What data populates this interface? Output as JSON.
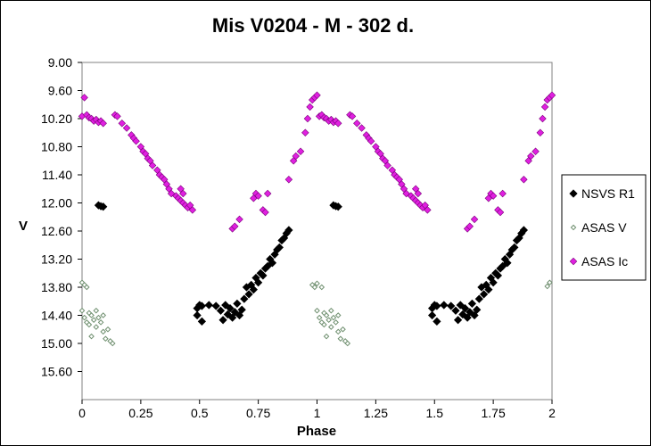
{
  "chart_data": {
    "type": "scatter",
    "title": "Mis V0204 - M - 302 d.",
    "xlabel": "Phase",
    "ylabel": "V",
    "xlim": [
      0,
      2
    ],
    "ylim": [
      9.0,
      16.2
    ],
    "y_inverted": true,
    "x_ticks": [
      "0",
      "0.25",
      "0.5",
      "0.75",
      "1",
      "1.25",
      "1.5",
      "1.75",
      "2"
    ],
    "y_ticks": [
      "9.00",
      "9.60",
      "10.20",
      "10.80",
      "11.40",
      "12.00",
      "12.60",
      "13.20",
      "13.80",
      "14.40",
      "15.00",
      "15.60"
    ],
    "grid": false,
    "legend_position": "right",
    "series": [
      {
        "name": "NSVS R1",
        "marker": "diamond-filled",
        "color": "#000000",
        "points": [
          [
            0.07,
            12.05
          ],
          [
            0.08,
            12.07
          ],
          [
            0.09,
            12.08
          ],
          [
            0.49,
            14.25
          ],
          [
            0.49,
            14.4
          ],
          [
            0.5,
            14.18
          ],
          [
            0.51,
            14.2
          ],
          [
            0.51,
            14.53
          ],
          [
            0.54,
            14.18
          ],
          [
            0.57,
            14.2
          ],
          [
            0.59,
            14.3
          ],
          [
            0.6,
            14.5
          ],
          [
            0.61,
            14.18
          ],
          [
            0.62,
            14.38
          ],
          [
            0.63,
            14.25
          ],
          [
            0.64,
            14.45
          ],
          [
            0.65,
            14.33
          ],
          [
            0.66,
            14.15
          ],
          [
            0.67,
            14.4
          ],
          [
            0.68,
            14.28
          ],
          [
            0.69,
            14.05
          ],
          [
            0.7,
            13.8
          ],
          [
            0.71,
            13.95
          ],
          [
            0.72,
            13.75
          ],
          [
            0.73,
            13.85
          ],
          [
            0.74,
            13.6
          ],
          [
            0.75,
            13.7
          ],
          [
            0.76,
            13.5
          ],
          [
            0.77,
            13.55
          ],
          [
            0.78,
            13.4
          ],
          [
            0.79,
            13.35
          ],
          [
            0.8,
            13.2
          ],
          [
            0.81,
            13.28
          ],
          [
            0.82,
            13.1
          ],
          [
            0.83,
            13.0
          ],
          [
            0.84,
            12.95
          ],
          [
            0.85,
            12.8
          ],
          [
            0.86,
            12.75
          ],
          [
            0.87,
            12.65
          ],
          [
            0.88,
            12.58
          ],
          [
            1.07,
            12.05
          ],
          [
            1.08,
            12.07
          ],
          [
            1.09,
            12.08
          ],
          [
            1.49,
            14.25
          ],
          [
            1.49,
            14.4
          ],
          [
            1.5,
            14.18
          ],
          [
            1.51,
            14.2
          ],
          [
            1.51,
            14.53
          ],
          [
            1.54,
            14.18
          ],
          [
            1.57,
            14.2
          ],
          [
            1.59,
            14.3
          ],
          [
            1.6,
            14.5
          ],
          [
            1.61,
            14.18
          ],
          [
            1.62,
            14.38
          ],
          [
            1.63,
            14.25
          ],
          [
            1.64,
            14.45
          ],
          [
            1.65,
            14.33
          ],
          [
            1.66,
            14.15
          ],
          [
            1.67,
            14.4
          ],
          [
            1.68,
            14.28
          ],
          [
            1.69,
            14.05
          ],
          [
            1.7,
            13.8
          ],
          [
            1.71,
            13.95
          ],
          [
            1.72,
            13.75
          ],
          [
            1.73,
            13.85
          ],
          [
            1.74,
            13.6
          ],
          [
            1.75,
            13.7
          ],
          [
            1.76,
            13.5
          ],
          [
            1.77,
            13.55
          ],
          [
            1.78,
            13.4
          ],
          [
            1.79,
            13.35
          ],
          [
            1.8,
            13.2
          ],
          [
            1.81,
            13.28
          ],
          [
            1.82,
            13.1
          ],
          [
            1.83,
            13.0
          ],
          [
            1.84,
            12.95
          ],
          [
            1.85,
            12.8
          ],
          [
            1.86,
            12.75
          ],
          [
            1.87,
            12.65
          ],
          [
            1.88,
            12.58
          ]
        ]
      },
      {
        "name": "ASAS V",
        "marker": "diamond-open",
        "color": "#6f8f6f",
        "points": [
          [
            0.0,
            13.7
          ],
          [
            0.01,
            13.75
          ],
          [
            0.0,
            14.3
          ],
          [
            0.01,
            14.45
          ],
          [
            0.02,
            13.8
          ],
          [
            0.02,
            14.55
          ],
          [
            0.03,
            14.35
          ],
          [
            0.03,
            14.6
          ],
          [
            0.04,
            14.4
          ],
          [
            0.04,
            14.85
          ],
          [
            0.05,
            14.5
          ],
          [
            0.06,
            14.65
          ],
          [
            0.06,
            14.3
          ],
          [
            0.07,
            14.45
          ],
          [
            0.08,
            14.55
          ],
          [
            0.09,
            14.75
          ],
          [
            0.09,
            14.4
          ],
          [
            0.1,
            14.9
          ],
          [
            0.11,
            14.7
          ],
          [
            0.12,
            14.95
          ],
          [
            0.13,
            15.0
          ],
          [
            0.98,
            13.75
          ],
          [
            0.99,
            13.8
          ],
          [
            1.0,
            13.72
          ],
          [
            1.0,
            14.3
          ],
          [
            1.01,
            14.45
          ],
          [
            1.02,
            13.8
          ],
          [
            1.02,
            14.55
          ],
          [
            1.03,
            14.35
          ],
          [
            1.03,
            14.6
          ],
          [
            1.04,
            14.4
          ],
          [
            1.04,
            14.85
          ],
          [
            1.05,
            14.5
          ],
          [
            1.06,
            14.65
          ],
          [
            1.06,
            14.3
          ],
          [
            1.07,
            14.45
          ],
          [
            1.08,
            14.55
          ],
          [
            1.09,
            14.75
          ],
          [
            1.09,
            14.4
          ],
          [
            1.1,
            14.9
          ],
          [
            1.11,
            14.7
          ],
          [
            1.12,
            14.95
          ],
          [
            1.13,
            15.0
          ],
          [
            1.98,
            13.78
          ],
          [
            1.99,
            13.7
          ]
        ]
      },
      {
        "name": "ASAS Ic",
        "marker": "diamond-filled",
        "color": "#e020e0",
        "points": [
          [
            0.0,
            10.15
          ],
          [
            0.01,
            9.75
          ],
          [
            0.02,
            10.12
          ],
          [
            0.03,
            10.18
          ],
          [
            0.04,
            10.2
          ],
          [
            0.05,
            10.25
          ],
          [
            0.06,
            10.22
          ],
          [
            0.07,
            10.28
          ],
          [
            0.08,
            10.25
          ],
          [
            0.09,
            10.3
          ],
          [
            0.14,
            10.12
          ],
          [
            0.15,
            10.15
          ],
          [
            0.17,
            10.3
          ],
          [
            0.19,
            10.4
          ],
          [
            0.21,
            10.55
          ],
          [
            0.22,
            10.62
          ],
          [
            0.23,
            10.68
          ],
          [
            0.25,
            10.8
          ],
          [
            0.26,
            10.9
          ],
          [
            0.27,
            10.95
          ],
          [
            0.28,
            11.05
          ],
          [
            0.29,
            11.1
          ],
          [
            0.3,
            11.2
          ],
          [
            0.32,
            11.3
          ],
          [
            0.33,
            11.4
          ],
          [
            0.34,
            11.45
          ],
          [
            0.35,
            11.5
          ],
          [
            0.36,
            11.6
          ],
          [
            0.37,
            11.7
          ],
          [
            0.38,
            11.8
          ],
          [
            0.4,
            11.85
          ],
          [
            0.41,
            11.9
          ],
          [
            0.42,
            11.95
          ],
          [
            0.43,
            12.0
          ],
          [
            0.42,
            11.7
          ],
          [
            0.43,
            11.8
          ],
          [
            0.44,
            12.05
          ],
          [
            0.45,
            12.1
          ],
          [
            0.46,
            12.05
          ],
          [
            0.47,
            12.15
          ],
          [
            0.64,
            12.55
          ],
          [
            0.65,
            12.5
          ],
          [
            0.67,
            12.35
          ],
          [
            0.73,
            11.9
          ],
          [
            0.74,
            11.8
          ],
          [
            0.75,
            11.85
          ],
          [
            0.77,
            12.15
          ],
          [
            0.78,
            12.2
          ],
          [
            0.79,
            11.8
          ],
          [
            0.88,
            11.5
          ],
          [
            0.9,
            11.1
          ],
          [
            0.91,
            11.0
          ],
          [
            0.93,
            10.9
          ],
          [
            0.95,
            10.5
          ],
          [
            0.96,
            10.2
          ],
          [
            0.97,
            9.95
          ],
          [
            0.98,
            9.8
          ],
          [
            0.99,
            9.75
          ],
          [
            1.0,
            9.7
          ],
          [
            1.01,
            10.15
          ],
          [
            1.02,
            10.12
          ],
          [
            1.03,
            10.18
          ],
          [
            1.04,
            10.2
          ],
          [
            1.05,
            10.25
          ],
          [
            1.06,
            10.22
          ],
          [
            1.07,
            10.28
          ],
          [
            1.08,
            10.25
          ],
          [
            1.09,
            10.3
          ],
          [
            1.14,
            10.12
          ],
          [
            1.15,
            10.15
          ],
          [
            1.17,
            10.3
          ],
          [
            1.19,
            10.4
          ],
          [
            1.21,
            10.55
          ],
          [
            1.22,
            10.62
          ],
          [
            1.23,
            10.68
          ],
          [
            1.25,
            10.8
          ],
          [
            1.26,
            10.9
          ],
          [
            1.27,
            10.95
          ],
          [
            1.28,
            11.05
          ],
          [
            1.29,
            11.1
          ],
          [
            1.3,
            11.2
          ],
          [
            1.32,
            11.3
          ],
          [
            1.33,
            11.4
          ],
          [
            1.34,
            11.45
          ],
          [
            1.35,
            11.5
          ],
          [
            1.36,
            11.6
          ],
          [
            1.37,
            11.7
          ],
          [
            1.38,
            11.8
          ],
          [
            1.4,
            11.85
          ],
          [
            1.41,
            11.9
          ],
          [
            1.42,
            11.95
          ],
          [
            1.43,
            12.0
          ],
          [
            1.42,
            11.7
          ],
          [
            1.43,
            11.8
          ],
          [
            1.44,
            12.05
          ],
          [
            1.45,
            12.1
          ],
          [
            1.46,
            12.05
          ],
          [
            1.47,
            12.15
          ],
          [
            1.64,
            12.55
          ],
          [
            1.65,
            12.5
          ],
          [
            1.67,
            12.35
          ],
          [
            1.73,
            11.9
          ],
          [
            1.74,
            11.8
          ],
          [
            1.75,
            11.85
          ],
          [
            1.77,
            12.15
          ],
          [
            1.78,
            12.2
          ],
          [
            1.79,
            11.8
          ],
          [
            1.88,
            11.5
          ],
          [
            1.9,
            11.1
          ],
          [
            1.91,
            11.0
          ],
          [
            1.93,
            10.9
          ],
          [
            1.95,
            10.5
          ],
          [
            1.96,
            10.2
          ],
          [
            1.97,
            9.95
          ],
          [
            1.98,
            9.8
          ],
          [
            1.99,
            9.75
          ],
          [
            2.0,
            9.7
          ]
        ]
      }
    ]
  }
}
